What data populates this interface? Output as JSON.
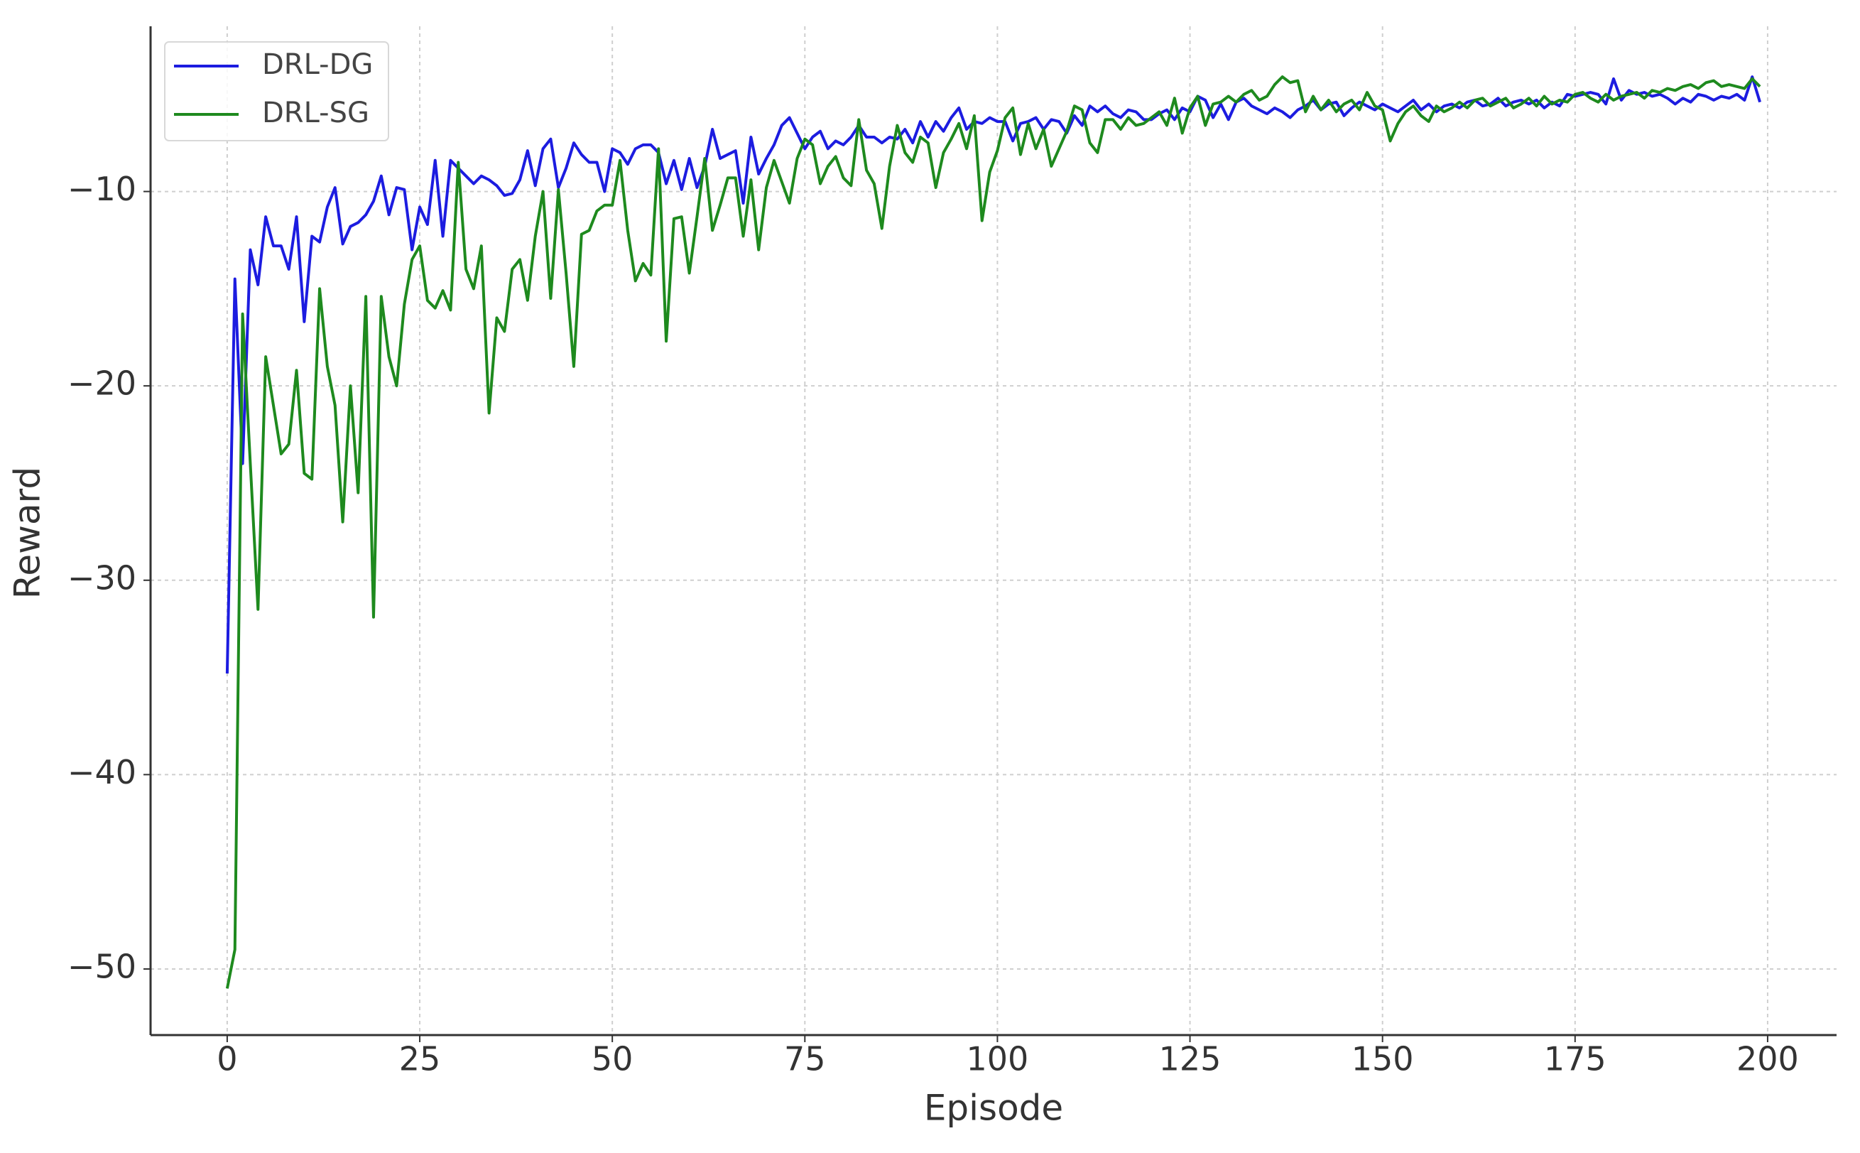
{
  "chart_data": {
    "type": "line",
    "xlabel": "Episode",
    "ylabel": "Reward",
    "x": [
      0,
      1,
      2,
      3,
      4,
      5,
      6,
      7,
      8,
      9,
      10,
      11,
      12,
      13,
      14,
      15,
      16,
      17,
      18,
      19,
      20,
      21,
      22,
      23,
      24,
      25,
      26,
      27,
      28,
      29,
      30,
      31,
      32,
      33,
      34,
      35,
      36,
      37,
      38,
      39,
      40,
      41,
      42,
      43,
      44,
      45,
      46,
      47,
      48,
      49,
      50,
      51,
      52,
      53,
      54,
      55,
      56,
      57,
      58,
      59,
      60,
      61,
      62,
      63,
      64,
      65,
      66,
      67,
      68,
      69,
      70,
      71,
      72,
      73,
      74,
      75,
      76,
      77,
      78,
      79,
      80,
      81,
      82,
      83,
      84,
      85,
      86,
      87,
      88,
      89,
      90,
      91,
      92,
      93,
      94,
      95,
      96,
      97,
      98,
      99,
      100,
      101,
      102,
      103,
      104,
      105,
      106,
      107,
      108,
      109,
      110,
      111,
      112,
      113,
      114,
      115,
      116,
      117,
      118,
      119,
      120,
      121,
      122,
      123,
      124,
      125,
      126,
      127,
      128,
      129,
      130,
      131,
      132,
      133,
      134,
      135,
      136,
      137,
      138,
      139,
      140,
      141,
      142,
      143,
      144,
      145,
      146,
      147,
      148,
      149,
      150,
      151,
      152,
      153,
      154,
      155,
      156,
      157,
      158,
      159,
      160,
      161,
      162,
      163,
      164,
      165,
      166,
      167,
      168,
      169,
      170,
      171,
      172,
      173,
      174,
      175,
      176,
      177,
      178,
      179,
      180,
      181,
      182,
      183,
      184,
      185,
      186,
      187,
      188,
      189,
      190,
      191,
      192,
      193,
      194,
      195,
      196,
      197,
      198,
      199
    ],
    "series": [
      {
        "name": "DRL-DG",
        "color": "#1c1ce0",
        "values": [
          -34.8,
          -14.5,
          -24.0,
          -13.0,
          -14.8,
          -11.3,
          -12.8,
          -12.8,
          -14.0,
          -11.3,
          -16.7,
          -12.3,
          -12.6,
          -10.8,
          -9.8,
          -12.7,
          -11.8,
          -11.6,
          -11.2,
          -10.5,
          -9.2,
          -11.2,
          -9.8,
          -9.9,
          -13.0,
          -10.8,
          -11.7,
          -8.4,
          -12.3,
          -8.4,
          -8.8,
          -9.2,
          -9.6,
          -9.2,
          -9.4,
          -9.7,
          -10.2,
          -10.1,
          -9.4,
          -7.9,
          -9.7,
          -7.8,
          -7.3,
          -9.8,
          -8.8,
          -7.5,
          -8.1,
          -8.5,
          -8.5,
          -10.0,
          -7.8,
          -8.0,
          -8.6,
          -7.8,
          -7.6,
          -7.6,
          -8.0,
          -9.6,
          -8.4,
          -9.9,
          -8.3,
          -9.8,
          -8.7,
          -6.8,
          -8.3,
          -8.1,
          -7.9,
          -10.6,
          -7.2,
          -9.1,
          -8.3,
          -7.6,
          -6.6,
          -6.2,
          -7.0,
          -7.8,
          -7.2,
          -6.9,
          -7.8,
          -7.4,
          -7.6,
          -7.2,
          -6.6,
          -7.2,
          -7.2,
          -7.5,
          -7.2,
          -7.3,
          -6.8,
          -7.5,
          -6.4,
          -7.2,
          -6.4,
          -6.9,
          -6.2,
          -5.7,
          -6.8,
          -6.4,
          -6.5,
          -6.2,
          -6.4,
          -6.4,
          -7.4,
          -6.5,
          -6.4,
          -6.2,
          -6.8,
          -6.3,
          -6.4,
          -7.0,
          -6.1,
          -6.6,
          -5.6,
          -5.9,
          -5.6,
          -6.0,
          -6.2,
          -5.8,
          -5.9,
          -6.3,
          -6.3,
          -6.0,
          -5.8,
          -6.3,
          -5.7,
          -5.9,
          -5.1,
          -5.3,
          -6.2,
          -5.5,
          -6.3,
          -5.4,
          -5.2,
          -5.6,
          -5.8,
          -6.0,
          -5.7,
          -5.9,
          -6.2,
          -5.8,
          -5.6,
          -5.3,
          -5.8,
          -5.5,
          -5.4,
          -6.1,
          -5.7,
          -5.4,
          -5.6,
          -5.8,
          -5.5,
          -5.7,
          -5.9,
          -5.6,
          -5.3,
          -5.8,
          -5.5,
          -5.9,
          -5.6,
          -5.5,
          -5.7,
          -5.4,
          -5.3,
          -5.6,
          -5.5,
          -5.2,
          -5.6,
          -5.4,
          -5.3,
          -5.5,
          -5.3,
          -5.7,
          -5.4,
          -5.6,
          -5.0,
          -5.1,
          -5.0,
          -4.9,
          -5.0,
          -5.5,
          -4.2,
          -5.3,
          -4.8,
          -5.0,
          -4.9,
          -5.1,
          -5.0,
          -5.2,
          -5.5,
          -5.2,
          -5.4,
          -5.0,
          -5.1,
          -5.3,
          -5.1,
          -5.2,
          -5.0,
          -5.3,
          -4.1,
          -5.4
        ]
      },
      {
        "name": "DRL-SG",
        "color": "#1e8a1e",
        "values": [
          -51.0,
          -49.0,
          -16.3,
          -24.0,
          -31.5,
          -18.5,
          -21.0,
          -23.5,
          -23.0,
          -19.2,
          -24.5,
          -24.8,
          -15.0,
          -19.0,
          -21.0,
          -27.0,
          -20.0,
          -25.5,
          -15.4,
          -31.9,
          -15.4,
          -18.5,
          -20.0,
          -15.8,
          -13.5,
          -12.8,
          -15.6,
          -16.0,
          -15.1,
          -16.1,
          -8.5,
          -14.0,
          -15.0,
          -12.8,
          -21.4,
          -16.5,
          -17.2,
          -14.0,
          -13.5,
          -15.6,
          -12.3,
          -10.0,
          -15.5,
          -9.9,
          -14.2,
          -19.0,
          -12.2,
          -12.0,
          -11.0,
          -10.7,
          -10.7,
          -8.4,
          -12.0,
          -14.6,
          -13.7,
          -14.3,
          -7.8,
          -17.7,
          -11.4,
          -11.3,
          -14.2,
          -11.3,
          -8.3,
          -12.0,
          -10.7,
          -9.3,
          -9.3,
          -12.3,
          -9.4,
          -13.0,
          -9.8,
          -8.4,
          -9.5,
          -10.6,
          -8.3,
          -7.3,
          -7.6,
          -9.6,
          -8.7,
          -8.2,
          -9.3,
          -9.7,
          -6.3,
          -8.9,
          -9.6,
          -11.9,
          -8.7,
          -6.6,
          -8.0,
          -8.5,
          -7.2,
          -7.5,
          -9.8,
          -8.0,
          -7.3,
          -6.5,
          -7.8,
          -6.1,
          -11.5,
          -9.0,
          -7.9,
          -6.2,
          -5.7,
          -8.1,
          -6.5,
          -7.8,
          -6.8,
          -8.7,
          -7.8,
          -6.9,
          -5.6,
          -5.8,
          -7.5,
          -8.0,
          -6.3,
          -6.3,
          -6.8,
          -6.2,
          -6.6,
          -6.5,
          -6.2,
          -5.9,
          -6.6,
          -5.2,
          -7.0,
          -5.7,
          -5.1,
          -6.6,
          -5.5,
          -5.4,
          -5.1,
          -5.4,
          -5.0,
          -4.8,
          -5.3,
          -5.1,
          -4.5,
          -4.1,
          -4.4,
          -4.3,
          -5.9,
          -5.1,
          -5.8,
          -5.3,
          -5.9,
          -5.5,
          -5.3,
          -5.8,
          -4.9,
          -5.6,
          -5.8,
          -7.4,
          -6.5,
          -5.9,
          -5.6,
          -6.1,
          -6.4,
          -5.6,
          -5.9,
          -5.7,
          -5.4,
          -5.7,
          -5.3,
          -5.2,
          -5.6,
          -5.4,
          -5.2,
          -5.7,
          -5.5,
          -5.2,
          -5.6,
          -5.1,
          -5.5,
          -5.3,
          -5.4,
          -5.0,
          -4.9,
          -5.2,
          -5.4,
          -5.0,
          -5.3,
          -5.1,
          -5.0,
          -4.9,
          -5.2,
          -4.8,
          -4.9,
          -4.7,
          -4.8,
          -4.6,
          -4.5,
          -4.7,
          -4.4,
          -4.3,
          -4.6,
          -4.5,
          -4.6,
          -4.7,
          -4.2,
          -4.6
        ]
      }
    ],
    "xlim": [
      -9.95,
      208.95
    ],
    "ylim": [
      -53.4,
      -1.5
    ],
    "xticks": [
      0,
      25,
      50,
      75,
      100,
      125,
      150,
      175,
      200
    ],
    "yticks": [
      {
        "value": -50,
        "label": "−50"
      },
      {
        "value": -40,
        "label": "−40"
      },
      {
        "value": -30,
        "label": "−30"
      },
      {
        "value": -20,
        "label": "−20"
      },
      {
        "value": -10,
        "label": "−10"
      }
    ],
    "grid": true,
    "legend": "upper left"
  }
}
